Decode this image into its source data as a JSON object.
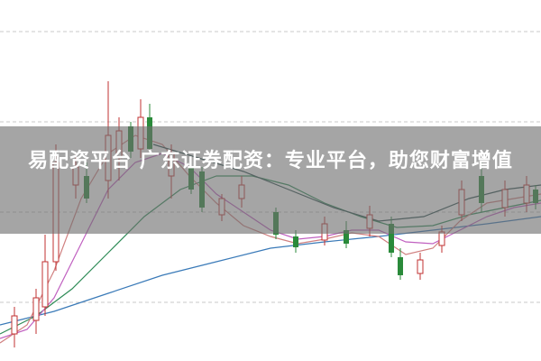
{
  "banner": {
    "title": "易配资平台 广东证券配资：专业平台，助您财富增值"
  }
}
